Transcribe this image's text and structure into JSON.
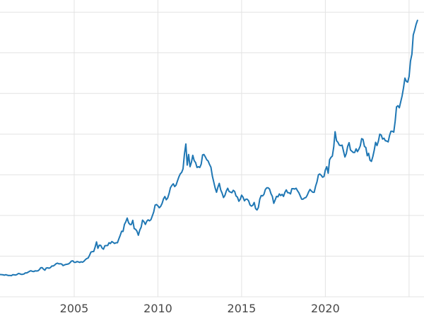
{
  "page": {
    "background_color": "#ffffff"
  },
  "chart_data": {
    "type": "line",
    "title": "",
    "xlabel": "",
    "ylabel": "",
    "series_name": "price",
    "line_color": "#1f77b4",
    "line_width": 2,
    "grid": true,
    "grid_color": "#e3e3e3",
    "tick_label_color": "#484848",
    "tick_font_size": 16,
    "legend": "none",
    "xlim": [
      2000.57,
      2025.89
    ],
    "ylim": [
      0,
      3650
    ],
    "x_unit": "year",
    "x_start": 2000.5,
    "x_step": 0.0833333,
    "xticks": [
      {
        "value": 2005,
        "label": "2005"
      },
      {
        "value": 2010,
        "label": "2010"
      },
      {
        "value": 2015,
        "label": "2015"
      },
      {
        "value": 2020,
        "label": "2020"
      }
    ],
    "x_gridlines": [
      2005,
      2010,
      2015,
      2020,
      2025
    ],
    "y_gridlines": [
      0,
      500,
      1000,
      1500,
      2000,
      2500,
      3000,
      3500
    ],
    "values": [
      281,
      274,
      273,
      270,
      266,
      272,
      266,
      262,
      263,
      260,
      272,
      270,
      268,
      274,
      287,
      283,
      276,
      276,
      281,
      295,
      294,
      302,
      314,
      321,
      313,
      310,
      319,
      317,
      319,
      333,
      357,
      359,
      340,
      328,
      355,
      356,
      351,
      360,
      379,
      379,
      390,
      407,
      414,
      405,
      407,
      403,
      384,
      392,
      398,
      401,
      405,
      420,
      439,
      442,
      424,
      423,
      434,
      429,
      422,
      431,
      425,
      437,
      456,
      470,
      477,
      510,
      550,
      555,
      557,
      611,
      675,
      596,
      634,
      633,
      599,
      586,
      628,
      630,
      631,
      665,
      655,
      680,
      667,
      656,
      665,
      665,
      713,
      755,
      806,
      804,
      890,
      922,
      968,
      910,
      889,
      889,
      940,
      839,
      830,
      807,
      757,
      820,
      858,
      943,
      924,
      890,
      929,
      946,
      934,
      949,
      997,
      1043,
      1127,
      1135,
      1118,
      1095,
      1113,
      1149,
      1205,
      1233,
      1193,
      1216,
      1271,
      1342,
      1370,
      1390,
      1356,
      1373,
      1424,
      1474,
      1512,
      1529,
      1573,
      1755,
      1880,
      1620,
      1750,
      1600,
      1655,
      1740,
      1675,
      1650,
      1590,
      1600,
      1590,
      1630,
      1745,
      1750,
      1720,
      1685,
      1670,
      1628,
      1593,
      1485,
      1415,
      1340,
      1285,
      1350,
      1395,
      1315,
      1275,
      1220,
      1245,
      1300,
      1335,
      1295,
      1288,
      1280,
      1310,
      1295,
      1240,
      1225,
      1175,
      1200,
      1250,
      1225,
      1180,
      1200,
      1200,
      1180,
      1130,
      1115,
      1125,
      1160,
      1085,
      1068,
      1098,
      1200,
      1245,
      1240,
      1260,
      1320,
      1340,
      1340,
      1325,
      1270,
      1235,
      1150,
      1190,
      1235,
      1230,
      1265,
      1245,
      1260,
      1235,
      1285,
      1315,
      1280,
      1280,
      1265,
      1330,
      1330,
      1325,
      1335,
      1305,
      1280,
      1240,
      1200,
      1200,
      1215,
      1220,
      1250,
      1290,
      1320,
      1300,
      1285,
      1285,
      1360,
      1415,
      1500,
      1510,
      1495,
      1470,
      1480,
      1560,
      1600,
      1520,
      1685,
      1715,
      1730,
      1845,
      2030,
      1920,
      1900,
      1865,
      1860,
      1865,
      1790,
      1720,
      1760,
      1850,
      1895,
      1805,
      1790,
      1775,
      1775,
      1820,
      1785,
      1815,
      1855,
      1945,
      1935,
      1850,
      1835,
      1735,
      1765,
      1680,
      1665,
      1725,
      1800,
      1900,
      1860,
      1915,
      2000,
      1990,
      1940,
      1950,
      1920,
      1915,
      1905,
      1985,
      2035,
      2035,
      2025,
      2160,
      2335,
      2350,
      2325,
      2400,
      2470,
      2570,
      2690,
      2650,
      2640,
      2710,
      2900,
      2985,
      3220,
      3280,
      3350,
      3400
    ]
  }
}
